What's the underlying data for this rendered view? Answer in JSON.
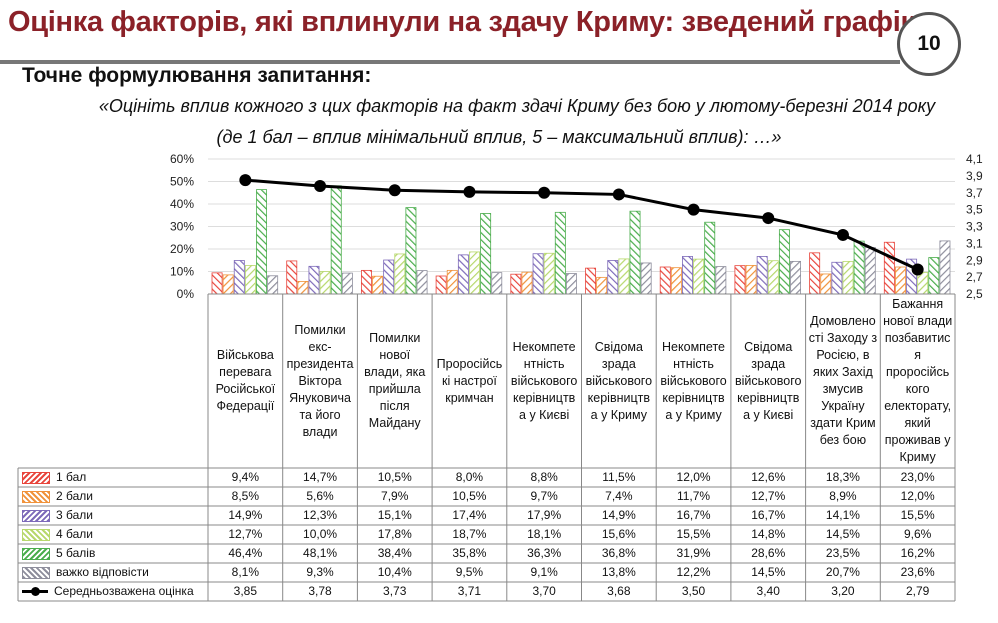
{
  "header": {
    "title": "Оцінка факторів, які вплинули на здачу Криму: зведений графік",
    "page_number": "10",
    "subtitle": "Точне формулювання запитання:",
    "question_line1": "«Оцініть вплив кожного з цих факторів на факт здачі Криму без бою у лютому-березні 2014 року",
    "question_line2": "(де 1 бал – вплив мінімальний вплив, 5 – максимальний вплив):  …»"
  },
  "chart_data": {
    "type": "bar",
    "title": "Оцінка факторів, які вплинули на здачу Криму: зведений графік",
    "categories": [
      "Військова перевага Російської Федерації",
      "Помилки екс-президента Віктора Януковича та його влади",
      "Помилки нової влади, яка прийшла після Майдану",
      "Проросійські настрої кримчан",
      "Некомпетентність військового керівництва у Києві",
      "Свідома зрада військового керівництва у Криму",
      "Некомпетентність військового керівництва у Криму",
      "Свідома зрада військового керівництва у Києві",
      "Домовленості Заходу з Росією, в яких Захід змусив Україну здати Крим без бою",
      "Бажання нової влади позбавитися проросійського електорату, який проживав у Криму"
    ],
    "category_labels": [
      "Військова перевага Російської Федерації",
      "Помилки екс-президента Віктора Януковича та його влади",
      "Помилки нової влади, яка прийшла після Майдану",
      "Проросійсь кі настрої кримчан",
      "Некомпете нтність військового керівництв а у Києві",
      "Свідома зрада військового керівництв а у Криму",
      "Некомпете нтність військового керівництв а у Криму",
      "Свідома зрада військового керівництв а у Києві",
      "Домовлено сті Заходу з Росією, в яких Захід змусив Україну здати Крим без бою",
      "Бажання нової влади позбавитис я проросійсь кого електорату, який проживав у Криму"
    ],
    "series": [
      {
        "name": "1 бал",
        "color": "#e8453c",
        "values": [
          9.4,
          14.7,
          10.5,
          8.0,
          8.8,
          11.5,
          12.0,
          12.6,
          18.3,
          23.0
        ],
        "labels": [
          "9,4%",
          "14,7%",
          "10,5%",
          "8,0%",
          "8,8%",
          "11,5%",
          "12,0%",
          "12,6%",
          "18,3%",
          "23,0%"
        ]
      },
      {
        "name": "2 бали",
        "color": "#f0923a",
        "values": [
          8.5,
          5.6,
          7.9,
          10.5,
          9.7,
          7.4,
          11.7,
          12.7,
          8.9,
          12.0
        ],
        "labels": [
          "8,5%",
          "5,6%",
          "7,9%",
          "10,5%",
          "9,7%",
          "7,4%",
          "11,7%",
          "12,7%",
          "8,9%",
          "12,0%"
        ]
      },
      {
        "name": "3 бали",
        "color": "#7d6ab9",
        "values": [
          14.9,
          12.3,
          15.1,
          17.4,
          17.9,
          14.9,
          16.7,
          16.7,
          14.1,
          15.5
        ],
        "labels": [
          "14,9%",
          "12,3%",
          "15,1%",
          "17,4%",
          "17,9%",
          "14,9%",
          "16,7%",
          "16,7%",
          "14,1%",
          "15,5%"
        ]
      },
      {
        "name": "4 бали",
        "color": "#b7d86c",
        "values": [
          12.7,
          10.0,
          17.8,
          18.7,
          18.1,
          15.6,
          15.5,
          14.8,
          14.5,
          9.6
        ],
        "labels": [
          "12,7%",
          "10,0%",
          "17,8%",
          "18,7%",
          "18,1%",
          "15,6%",
          "15,5%",
          "14,8%",
          "14,5%",
          "9,6%"
        ]
      },
      {
        "name": "5 балів",
        "color": "#4aad4c",
        "values": [
          46.4,
          48.1,
          38.4,
          35.8,
          36.3,
          36.8,
          31.9,
          28.6,
          23.5,
          16.2
        ],
        "labels": [
          "46,4%",
          "48,1%",
          "38,4%",
          "35,8%",
          "36,3%",
          "36,8%",
          "31,9%",
          "28,6%",
          "23,5%",
          "16,2%"
        ]
      },
      {
        "name": "важко відповісти",
        "color": "#8e8e9c",
        "values": [
          8.1,
          9.3,
          10.4,
          9.5,
          9.1,
          13.8,
          12.2,
          14.5,
          20.7,
          23.6
        ],
        "labels": [
          "8,1%",
          "9,3%",
          "10,4%",
          "9,5%",
          "9,1%",
          "13,8%",
          "12,2%",
          "14,5%",
          "20,7%",
          "23,6%"
        ]
      }
    ],
    "line_series": {
      "name": "Середньозважена оцінка",
      "color": "#000000",
      "values": [
        3.85,
        3.78,
        3.73,
        3.71,
        3.7,
        3.68,
        3.5,
        3.4,
        3.2,
        2.79
      ],
      "labels": [
        "3,85",
        "3,78",
        "3,73",
        "3,71",
        "3,70",
        "3,68",
        "3,50",
        "3,40",
        "3,20",
        "2,79"
      ]
    },
    "ylim": [
      0,
      60
    ],
    "y_ticks": [
      "0%",
      "10%",
      "20%",
      "30%",
      "40%",
      "50%",
      "60%"
    ],
    "y2lim": [
      2.5,
      4.1
    ],
    "y2_ticks": [
      "2,5",
      "2,7",
      "2,9",
      "3,1",
      "3,3",
      "3,5",
      "3,7",
      "3,9",
      "4,1"
    ],
    "grid": true,
    "legend": "bottom-left data table"
  }
}
